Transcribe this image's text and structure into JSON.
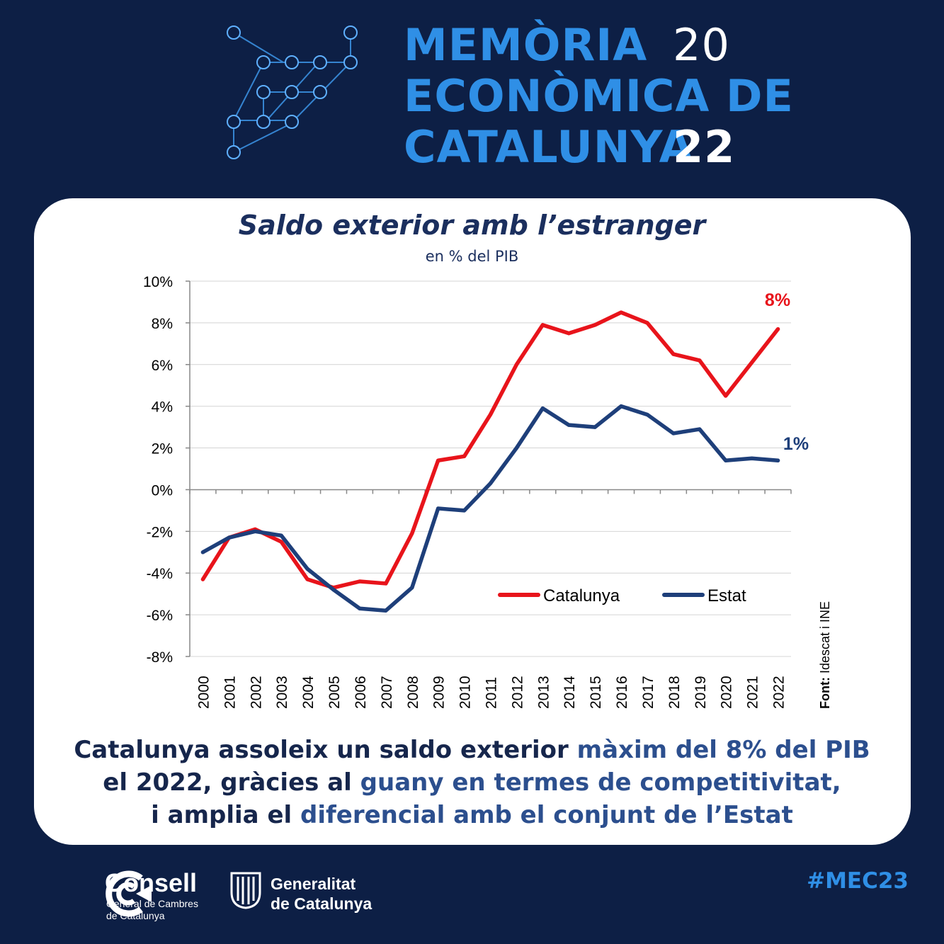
{
  "header": {
    "title_lines": [
      "MEMÒRIA",
      "ECONÒMICA DE",
      "CATALUNYA"
    ],
    "year_top": "20",
    "year_bottom": "22"
  },
  "chart": {
    "title": "Saldo exterior amb l’estranger",
    "subtitle": "en % del PIB",
    "source_label": "Font:",
    "source_text": "Idescat i INE",
    "end_labels": {
      "catalunya": "8%",
      "estat": "1%"
    }
  },
  "chart_data": {
    "type": "line",
    "title": "Saldo exterior amb l’estranger",
    "subtitle": "en % del PIB",
    "x": [
      "2000",
      "2001",
      "2002",
      "2003",
      "2004",
      "2005",
      "2006",
      "2007",
      "2008",
      "2009",
      "2010",
      "2011",
      "2012",
      "2013",
      "2014",
      "2015",
      "2016",
      "2017",
      "2018",
      "2019",
      "2020",
      "2021",
      "2022"
    ],
    "series": [
      {
        "name": "Catalunya",
        "color": "#e8141b",
        "values": [
          -4.3,
          -2.3,
          -1.9,
          -2.5,
          -4.3,
          -4.7,
          -4.4,
          -4.5,
          -2.1,
          1.4,
          1.6,
          3.6,
          6.0,
          7.9,
          7.5,
          7.9,
          8.5,
          8.0,
          6.5,
          6.2,
          4.5,
          6.1,
          7.7
        ]
      },
      {
        "name": "Estat",
        "color": "#1e3f7a",
        "values": [
          -3.0,
          -2.3,
          -2.0,
          -2.2,
          -3.8,
          -4.8,
          -5.7,
          -5.8,
          -4.7,
          -0.9,
          -1.0,
          0.3,
          2.0,
          3.9,
          3.1,
          3.0,
          4.0,
          3.6,
          2.7,
          2.9,
          1.4,
          1.5,
          1.4
        ]
      }
    ],
    "y_ticks": [
      "10%",
      "8%",
      "6%",
      "4%",
      "2%",
      "0%",
      "-2%",
      "-4%",
      "-6%",
      "-8%"
    ],
    "ylim": [
      -8,
      10
    ],
    "grid": true,
    "legend": "bottom-right"
  },
  "summary": {
    "line1_a": "Catalunya assoleix un saldo exterior",
    "line1_b": "màxim del 8% del PIB",
    "line2_a": "el 2022, gràcies al",
    "line2_b": "guany en termes de competitivitat,",
    "line3_a": "i amplia el",
    "line3_b": "diferencial amb el conjunt de l’Estat"
  },
  "footer": {
    "consell_name": "Consell",
    "consell_sub1": "General de Cambres",
    "consell_sub2": "de Catalunya",
    "generalitat_line1": "Generalitat",
    "generalitat_line2": "de Catalunya",
    "hashtag": "#MEC23"
  }
}
